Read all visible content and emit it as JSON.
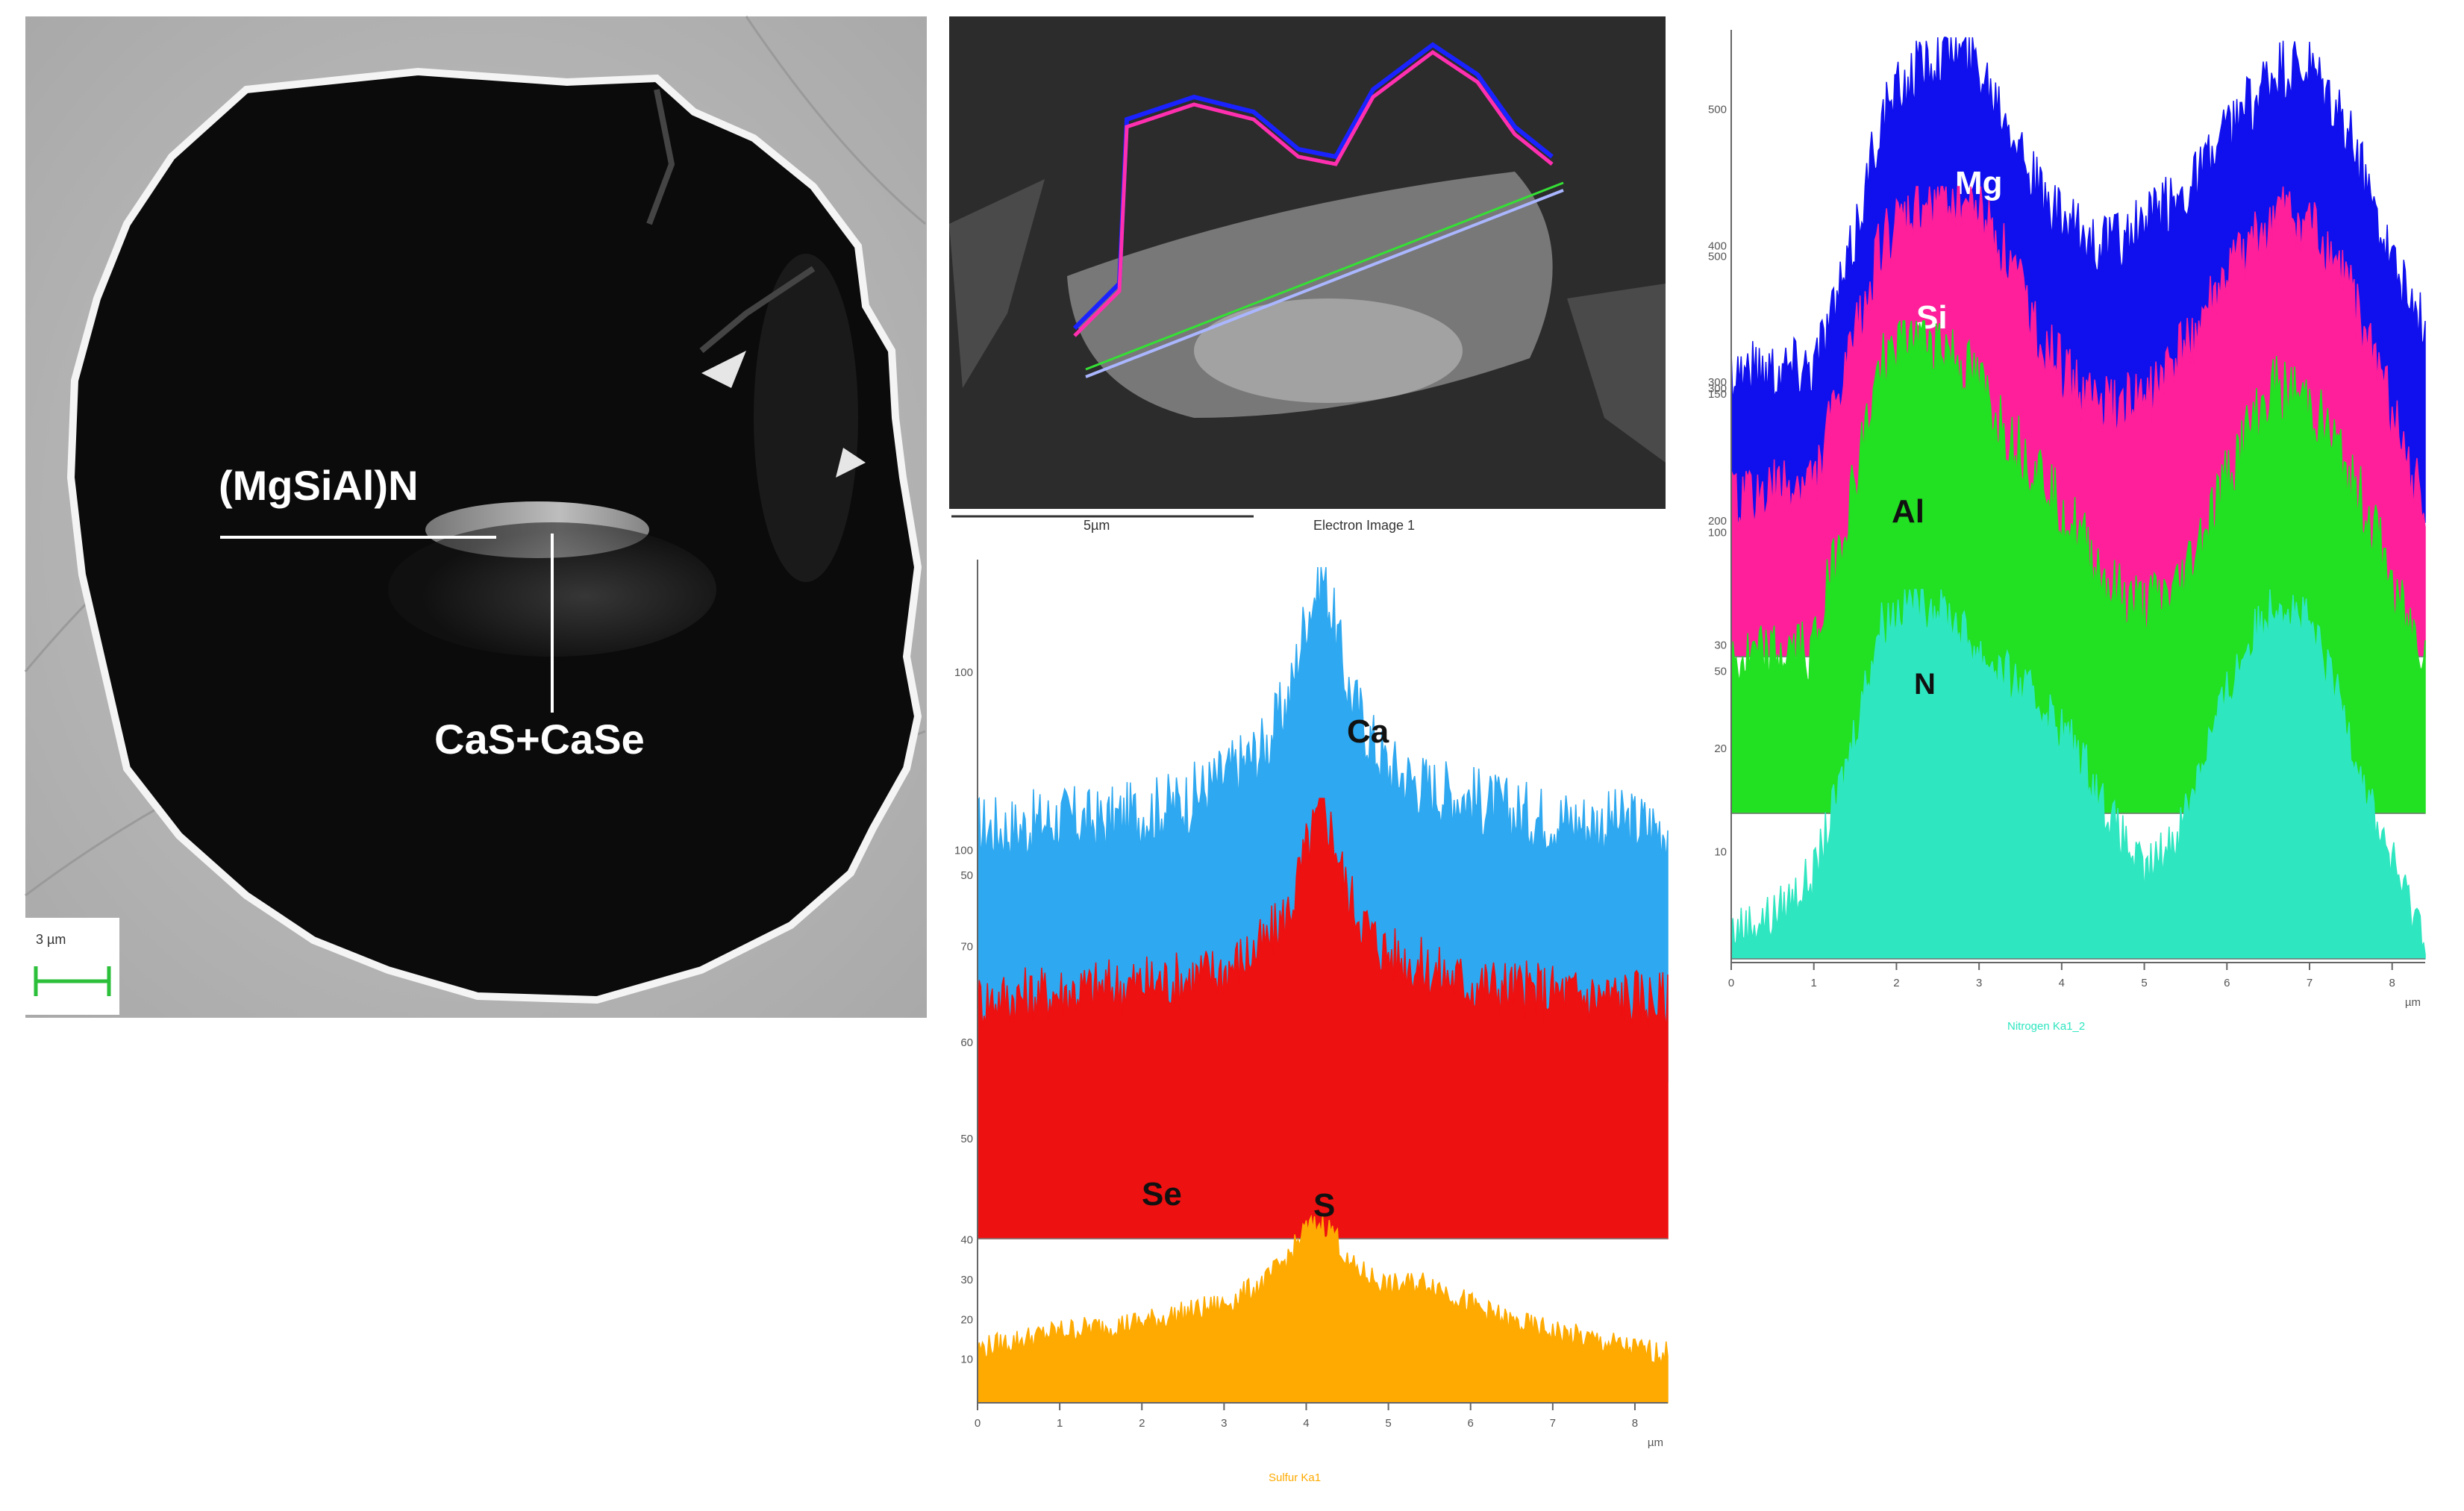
{
  "panels": {
    "sem_image": {
      "annotations": {
        "matrix_phase": "(MgSiAl)N",
        "inclusion_phase": "CaS+CaSe"
      },
      "scale_bar": "3 µm"
    },
    "electron_image": {
      "scale_label": "5µm",
      "caption": "Electron Image 1"
    }
  },
  "colors": {
    "Mg": "#1010ee",
    "Si": "#ff1f9a",
    "Al": "#22e022",
    "N": "#2ee6c0",
    "Ca": "#2ea8f0",
    "Se": "#ee1111",
    "S": "#ffaa00"
  },
  "chart_data": [
    {
      "type": "area",
      "panel": "Ca / Se / S line scan",
      "x_unit": "µm",
      "xlim": [
        0,
        8.4
      ],
      "x_ticks": [
        "0",
        "1",
        "2",
        "3",
        "4",
        "5",
        "6",
        "7",
        "8"
      ],
      "footer_label": "Sulfur Ka1",
      "series": [
        {
          "name": "Ca",
          "y_ticks": [
            "100",
            "50"
          ],
          "x": [
            0,
            0.5,
            1,
            1.5,
            2,
            2.5,
            3,
            3.5,
            3.8,
            4.0,
            4.2,
            4.35,
            4.5,
            4.8,
            5,
            5.5,
            6,
            6.5,
            7,
            7.5,
            8,
            8.4
          ],
          "values": [
            50,
            50,
            52,
            51,
            53,
            55,
            60,
            66,
            76,
            92,
            100,
            90,
            78,
            67,
            62,
            58,
            56,
            53,
            52,
            51,
            51,
            50
          ]
        },
        {
          "name": "Se",
          "y_ticks": [
            "100",
            "70",
            "60",
            "50"
          ],
          "x": [
            0,
            0.5,
            1,
            1.5,
            2,
            2.5,
            3,
            3.5,
            3.8,
            4.0,
            4.2,
            4.35,
            4.5,
            4.8,
            5,
            5.5,
            6,
            6.5,
            7,
            7.5,
            8,
            8.4
          ],
          "values": [
            55,
            56,
            57,
            58,
            59,
            60,
            62,
            68,
            76,
            90,
            100,
            92,
            80,
            70,
            66,
            62,
            59,
            58,
            57,
            56,
            56,
            55
          ]
        },
        {
          "name": "S",
          "y_ticks": [
            "40",
            "30",
            "20",
            "10"
          ],
          "x": [
            0,
            0.5,
            1,
            1.5,
            2,
            2.5,
            3,
            3.5,
            3.8,
            4.0,
            4.2,
            4.35,
            4.5,
            4.8,
            5,
            5.5,
            6,
            6.5,
            7,
            7.5,
            8,
            8.4
          ],
          "values": [
            12,
            14,
            16,
            17,
            18,
            20,
            22,
            27,
            33,
            39,
            40,
            38,
            31,
            28,
            26,
            27,
            22,
            18,
            16,
            14,
            12,
            11
          ]
        }
      ]
    },
    {
      "type": "area",
      "panel": "Mg / Si / Al / N line scan",
      "x_unit": "µm",
      "xlim": [
        0,
        8.4
      ],
      "x_ticks": [
        "0",
        "1",
        "2",
        "3",
        "4",
        "5",
        "6",
        "7",
        "8"
      ],
      "footer_label": "Nitrogen Ka1_2",
      "series": [
        {
          "name": "Mg",
          "y_ticks": [
            "500",
            "400",
            "300"
          ],
          "x": [
            0,
            0.5,
            1,
            1.4,
            1.8,
            2.2,
            2.6,
            3.0,
            3.4,
            3.8,
            4.2,
            4.6,
            5.0,
            5.4,
            5.8,
            6.2,
            6.6,
            7.0,
            7.4,
            7.8,
            8.2,
            8.4
          ],
          "values": [
            160,
            162,
            168,
            260,
            420,
            470,
            500,
            480,
            420,
            330,
            300,
            290,
            310,
            340,
            380,
            430,
            470,
            470,
            420,
            330,
            230,
            200
          ]
        },
        {
          "name": "Si",
          "y_ticks": [
            "500",
            "300",
            "200"
          ],
          "x": [
            0,
            0.5,
            1,
            1.4,
            1.8,
            2.2,
            2.6,
            3.0,
            3.4,
            3.8,
            4.2,
            4.6,
            5.0,
            5.4,
            5.8,
            6.2,
            6.6,
            7.0,
            7.4,
            7.8,
            8.2,
            8.4
          ],
          "values": [
            150,
            160,
            170,
            280,
            400,
            430,
            450,
            440,
            380,
            300,
            260,
            240,
            250,
            290,
            340,
            390,
            430,
            420,
            370,
            290,
            180,
            150
          ]
        },
        {
          "name": "Al",
          "y_ticks": [
            "150",
            "100",
            "50"
          ],
          "x": [
            0,
            0.5,
            1,
            1.4,
            1.8,
            2.2,
            2.6,
            3.0,
            3.4,
            3.8,
            4.2,
            4.6,
            5.0,
            5.4,
            5.8,
            6.2,
            6.6,
            7.0,
            7.4,
            7.8,
            8.2,
            8.4
          ],
          "values": [
            40,
            42,
            45,
            80,
            120,
            130,
            125,
            115,
            100,
            90,
            75,
            60,
            55,
            60,
            80,
            100,
            115,
            110,
            95,
            75,
            50,
            45
          ]
        },
        {
          "name": "N",
          "y_ticks": [
            "30",
            "20",
            "10"
          ],
          "x": [
            0,
            0.5,
            1,
            1.4,
            1.8,
            2.2,
            2.6,
            3.0,
            3.4,
            3.8,
            4.2,
            4.6,
            5.0,
            5.4,
            5.8,
            6.2,
            6.6,
            7.0,
            7.4,
            7.8,
            8.2,
            8.4
          ],
          "values": [
            2,
            3,
            6,
            14,
            24,
            26,
            25,
            22,
            20,
            18,
            15,
            10,
            6,
            9,
            16,
            22,
            26,
            24,
            18,
            10,
            4,
            2
          ]
        }
      ]
    }
  ]
}
